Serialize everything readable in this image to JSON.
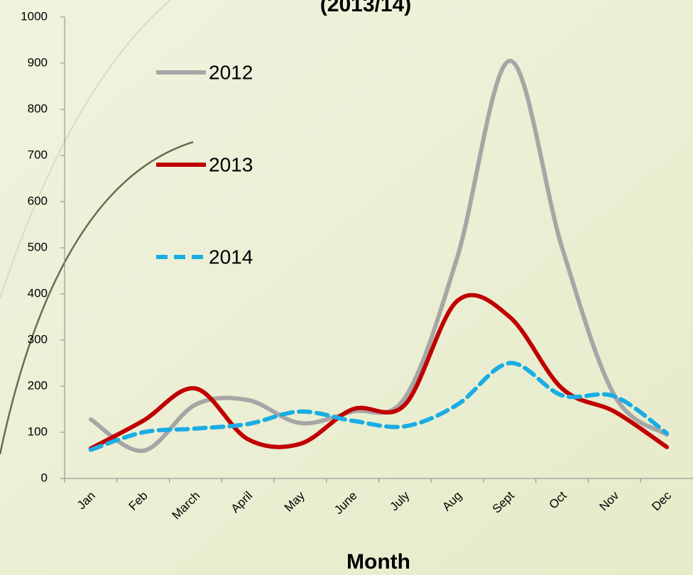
{
  "chart_data": {
    "type": "line",
    "title": "(2013/14)",
    "x_label": "Month",
    "categories": [
      "Jan",
      "Feb",
      "March",
      "April",
      "May",
      "June",
      "July",
      "Aug",
      "Sept",
      "Oct",
      "Nov",
      "Dec"
    ],
    "series": [
      {
        "name": "2012",
        "color": "#a6a6a6",
        "dash": false,
        "values": [
          128,
          60,
          160,
          170,
          120,
          145,
          175,
          480,
          905,
          500,
          180,
          95
        ]
      },
      {
        "name": "2013",
        "color": "#c00000",
        "dash": false,
        "values": [
          65,
          125,
          195,
          85,
          75,
          150,
          160,
          385,
          350,
          195,
          145,
          68
        ]
      },
      {
        "name": "2014",
        "color": "#1aade4",
        "dash": true,
        "values": [
          62,
          100,
          108,
          118,
          145,
          125,
          113,
          160,
          250,
          180,
          178,
          98
        ]
      }
    ],
    "ylim": [
      0,
      1000
    ],
    "yticks": [
      0,
      100,
      200,
      300,
      400,
      500,
      600,
      700,
      800,
      900,
      1000
    ],
    "grid": false,
    "legend": "upper left"
  }
}
